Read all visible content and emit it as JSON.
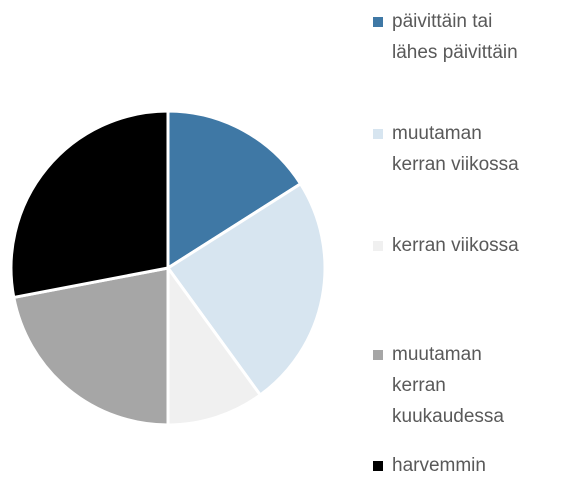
{
  "chart_data": {
    "type": "pie",
    "categories": [
      "päivittäin tai lähes päivittäin",
      "muutaman kerran viikossa",
      "kerran viikossa",
      "muutaman kerran kuukaudessa",
      "harvemmin"
    ],
    "values": [
      16,
      24,
      10,
      22,
      28
    ],
    "colors": [
      "#3f78a5",
      "#d7e5f0",
      "#f0f0f0",
      "#a6a6a6",
      "#000000"
    ],
    "legend": "right"
  }
}
